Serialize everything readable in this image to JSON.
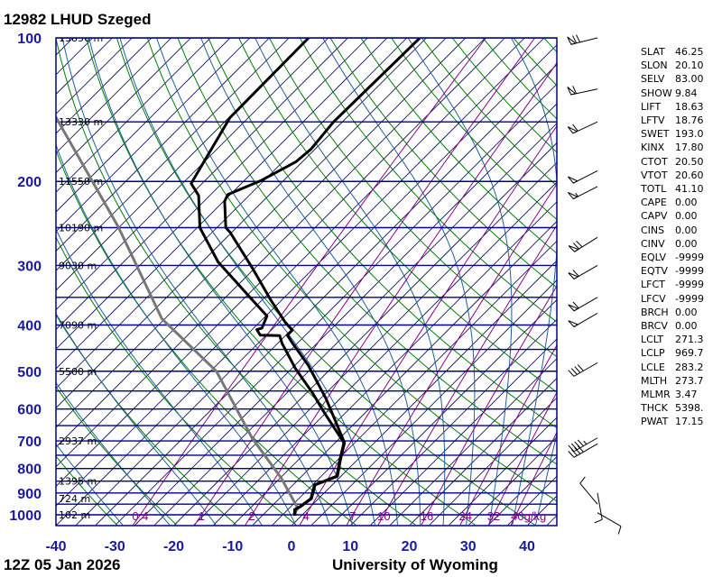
{
  "title": "12982 LHUD Szeged",
  "footer": {
    "datetime": "12Z 05 Jan 2026",
    "credit": "University of Wyoming"
  },
  "indices": [
    {
      "k": "SLAT",
      "v": "46.25"
    },
    {
      "k": "SLON",
      "v": "20.10"
    },
    {
      "k": "SELV",
      "v": "83.00"
    },
    {
      "k": "SHOW",
      "v": "9.84"
    },
    {
      "k": "LIFT",
      "v": "18.63"
    },
    {
      "k": "LFTV",
      "v": "18.76"
    },
    {
      "k": "SWET",
      "v": "193.0"
    },
    {
      "k": "KINX",
      "v": "17.80"
    },
    {
      "k": "CTOT",
      "v": "20.50"
    },
    {
      "k": "VTOT",
      "v": "20.60"
    },
    {
      "k": "TOTL",
      "v": "41.10"
    },
    {
      "k": "CAPE",
      "v": "0.00"
    },
    {
      "k": "CAPV",
      "v": "0.00"
    },
    {
      "k": "CINS",
      "v": "0.00"
    },
    {
      "k": "CINV",
      "v": "0.00"
    },
    {
      "k": "EQLV",
      "v": "-9999"
    },
    {
      "k": "EQTV",
      "v": "-9999"
    },
    {
      "k": "LFCT",
      "v": "-9999"
    },
    {
      "k": "LFCV",
      "v": "-9999"
    },
    {
      "k": "BRCH",
      "v": "0.00"
    },
    {
      "k": "BRCV",
      "v": "0.00"
    },
    {
      "k": "LCLT",
      "v": "271.3"
    },
    {
      "k": "LCLP",
      "v": "969.7"
    },
    {
      "k": "LCLE",
      "v": "283.2"
    },
    {
      "k": "MLTH",
      "v": "273.7"
    },
    {
      "k": "MLMR",
      "v": "3.47"
    },
    {
      "k": "THCK",
      "v": "5398."
    },
    {
      "k": "PWAT",
      "v": "17.15"
    }
  ],
  "chart_data": {
    "type": "skew-t",
    "xlim": [
      -40,
      40
    ],
    "ylim": [
      1050,
      100
    ],
    "y_scale": "log",
    "pressure_ticks": [
      "100",
      "200",
      "300",
      "400",
      "500",
      "600",
      "700",
      "800",
      "900",
      "1000"
    ],
    "temperature_ticks": [
      "-40",
      "-30",
      "-20",
      "-10",
      "0",
      "10",
      "20",
      "30",
      "40"
    ],
    "height_labels": [
      {
        "p": 100,
        "label": "15850 m"
      },
      {
        "p": 150,
        "label": "13330 m"
      },
      {
        "p": 200,
        "label": "11550 m"
      },
      {
        "p": 250,
        "label": "10190 m"
      },
      {
        "p": 300,
        "label": "9030 m"
      },
      {
        "p": 400,
        "label": "7090 m"
      },
      {
        "p": 500,
        "label": "5500 m"
      },
      {
        "p": 700,
        "label": "2937 m"
      },
      {
        "p": 850,
        "label": "1395 m"
      },
      {
        "p": 925,
        "label": "724 m"
      },
      {
        "p": 1000,
        "label": "102 m"
      }
    ],
    "mixing_ratio_labels": [
      {
        "w": 0.4,
        "label": "0.4"
      },
      {
        "w": 1,
        "label": "1"
      },
      {
        "w": 2,
        "label": "2"
      },
      {
        "w": 4,
        "label": "4"
      },
      {
        "w": 7,
        "label": "7"
      },
      {
        "w": 10,
        "label": "10"
      },
      {
        "w": 16,
        "label": "16"
      },
      {
        "w": 24,
        "label": "24"
      },
      {
        "w": 32,
        "label": "32"
      },
      {
        "w": 40,
        "label": "40g/kg"
      }
    ],
    "colors": {
      "isotherm": "#000050",
      "isobar": "#00008b",
      "dry_adiabat": "#008000",
      "moist_adiabat": "#1f5f9f",
      "mixing_ratio": "#8b008b",
      "sounding": "#000000",
      "parcel": "#777777",
      "labels": "#1a1aa0"
    },
    "temperature": [
      [
        100,
        -61.1
      ],
      [
        150,
        -61.5
      ],
      [
        171,
        -60.7
      ],
      [
        182,
        -61.1
      ],
      [
        199,
        -63.8
      ],
      [
        213,
        -67.1
      ],
      [
        220,
        -66.5
      ],
      [
        250,
        -61.8
      ],
      [
        256,
        -60.2
      ],
      [
        304,
        -50.4
      ],
      [
        355,
        -41.8
      ],
      [
        395,
        -35.6
      ],
      [
        410,
        -33.1
      ],
      [
        420,
        -33.1
      ],
      [
        437,
        -30.8
      ],
      [
        486,
        -24.4
      ],
      [
        572,
        -15.6
      ],
      [
        706,
        -5.1
      ],
      [
        769,
        -2.8
      ],
      [
        830,
        -0.6
      ],
      [
        866,
        -2.9
      ],
      [
        925,
        -1.2
      ],
      [
        962,
        -1.7
      ],
      [
        975,
        -2.1
      ],
      [
        1004,
        -1.1
      ]
    ],
    "dewpoint": [
      [
        100,
        -80.0
      ],
      [
        147,
        -79.8
      ],
      [
        202,
        -75.2
      ],
      [
        214,
        -71.9
      ],
      [
        250,
        -66.2
      ],
      [
        295,
        -57.3
      ],
      [
        354,
        -45.1
      ],
      [
        383,
        -39.8
      ],
      [
        406,
        -38.6
      ],
      [
        409,
        -39.2
      ],
      [
        420,
        -37.7
      ],
      [
        421,
        -34.3
      ],
      [
        437,
        -32.6
      ],
      [
        493,
        -26.1
      ],
      [
        556,
        -18.9
      ],
      [
        611,
        -13.6
      ],
      [
        706,
        -5.2
      ],
      [
        769,
        -2.9
      ],
      [
        830,
        -0.7
      ],
      [
        866,
        -3.0
      ],
      [
        925,
        -1.3
      ],
      [
        962,
        -1.8
      ],
      [
        975,
        -2.2
      ],
      [
        1004,
        -1.2
      ]
    ],
    "parcel": [
      [
        146,
        -109.7
      ],
      [
        250,
        -80.0
      ],
      [
        388,
        -57.2
      ],
      [
        500,
        -39.0
      ],
      [
        690,
        -21.6
      ],
      [
        838,
        -9.8
      ],
      [
        969.7,
        -1.85
      ],
      [
        1004,
        -1.5
      ]
    ],
    "wind": [
      {
        "p": 100,
        "dir": 256,
        "spd": 70
      },
      {
        "p": 128,
        "dir": 258,
        "spd": 60
      },
      {
        "p": 150,
        "dir": 245,
        "spd": 60
      },
      {
        "p": 190,
        "dir": 243,
        "spd": 50
      },
      {
        "p": 205,
        "dir": 243,
        "spd": 55
      },
      {
        "p": 262,
        "dir": 238,
        "spd": 70
      },
      {
        "p": 300,
        "dir": 240,
        "spd": 60
      },
      {
        "p": 350,
        "dir": 240,
        "spd": 60
      },
      {
        "p": 378,
        "dir": 240,
        "spd": 50
      },
      {
        "p": 480,
        "dir": 240,
        "spd": 40
      },
      {
        "p": 690,
        "dir": 240,
        "spd": 45
      },
      {
        "p": 710,
        "dir": 240,
        "spd": 40
      },
      {
        "p": 900,
        "dir": 170,
        "spd": 10
      },
      {
        "p": 950,
        "dir": 320,
        "spd": 10
      },
      {
        "p": 990,
        "dir": 120,
        "spd": 10
      }
    ]
  }
}
